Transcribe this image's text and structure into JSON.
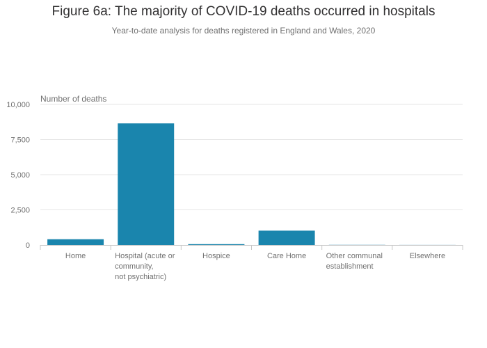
{
  "header": {
    "title": "Figure 6a: The majority of COVID-19 deaths occurred in hospitals",
    "subtitle": "Year-to-date analysis for deaths registered in England and Wales, 2020"
  },
  "colors": {
    "bar": "#1a85ad",
    "grid": "#e6e6e6",
    "axis": "#c8c8c8",
    "text": "#707070"
  },
  "chart_data": {
    "type": "bar",
    "title": "Figure 6a: The majority of COVID-19 deaths occurred in hospitals",
    "subtitle": "Year-to-date analysis for deaths registered in England and Wales, 2020",
    "xlabel": "",
    "ylabel": "Number of deaths",
    "ylim": [
      0,
      10000
    ],
    "yticks": [
      0,
      2500,
      5000,
      7500,
      10000
    ],
    "ytick_labels": [
      "0",
      "2,500",
      "5,000",
      "7,500",
      "10,000"
    ],
    "grid": true,
    "categories": [
      "Home",
      "Hospital (acute or community, not psychiatric)",
      "Hospice",
      "Care Home",
      "Other communal establishment",
      "Elsewhere"
    ],
    "category_label_lines": [
      [
        "Home"
      ],
      [
        "Hospital (acute or",
        "community,",
        "not psychiatric)"
      ],
      [
        "Hospice"
      ],
      [
        "Care Home"
      ],
      [
        "Other communal",
        "establishment"
      ],
      [
        "Elsewhere"
      ]
    ],
    "values": [
      410,
      8650,
      60,
      1020,
      10,
      5
    ]
  }
}
